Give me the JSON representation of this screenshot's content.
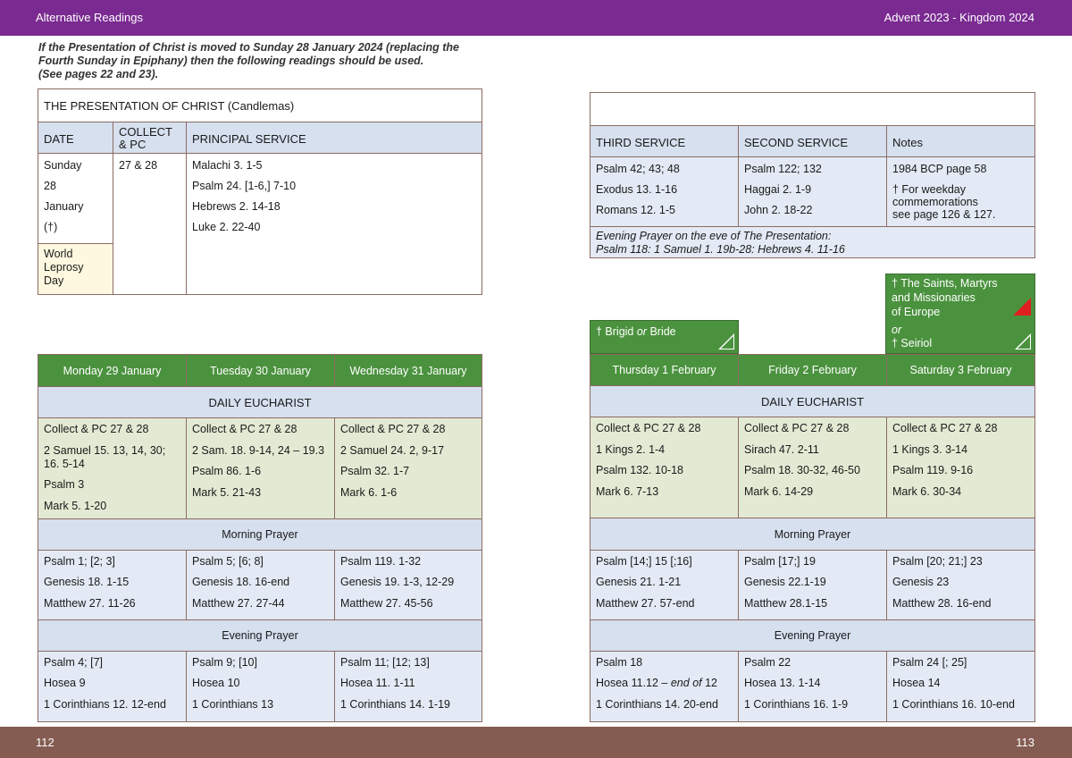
{
  "header": {
    "left": "Alternative Readings",
    "right": "Advent  2023 - Kingdom 2024"
  },
  "footer": {
    "left_page": "112",
    "right_page": "113"
  },
  "intro": {
    "line1": "If the Presentation of Christ is moved to Sunday 28 January 2024 (replacing the",
    "line2": "Fourth Sunday in Epiphany) then the following readings should be used.",
    "line3": "(See pages 22 and 23)."
  },
  "presentation": {
    "title": "THE PRESENTATION OF CHRIST (Candlemas)",
    "headers": {
      "date": "DATE",
      "collect1": "COLLECT",
      "collect2": "& PC",
      "principal": "PRINCIPAL SERVICE"
    },
    "date": [
      "Sunday",
      "28",
      "January",
      "(†)"
    ],
    "leprosy": [
      "World",
      "Leprosy",
      "Day"
    ],
    "collect": "27 & 28",
    "principal": [
      "Malachi 3. 1-5",
      "Psalm 24. [1-6,] 7-10",
      "Hebrews 2. 14-18",
      "Luke 2. 22-40"
    ]
  },
  "services": {
    "headers": {
      "third": "THIRD SERVICE",
      "second": "SECOND SERVICE",
      "notes": "Notes"
    },
    "third": [
      "Psalm 42; 43; 48",
      "Exodus 13. 1-16",
      "Romans 12. 1-5"
    ],
    "second": [
      "Psalm 122; 132",
      "Haggai 2. 1-9",
      "John 2. 18-22"
    ],
    "notes": [
      "1984 BCP page 58",
      "† For weekday",
      "commemorations",
      "see page 126 & 127."
    ],
    "eve_title": "Evening Prayer on the eve of The Presentation:",
    "eve_readings": "Psalm 118: 1 Samuel 1. 19b-28:  Hebrews 4. 11-16"
  },
  "commemorations": {
    "brigid": {
      "prefix": "† Brigid ",
      "or": "or",
      "suffix": " Bride"
    },
    "saints": {
      "line1": "† The Saints, Martyrs",
      "line2": "and Missionaries",
      "line3": "of Europe",
      "or": "or",
      "seiriol": "† Seiriol"
    }
  },
  "sections": {
    "eucharist": "DAILY EUCHARIST",
    "morning": "Morning Prayer",
    "evening": "Evening Prayer"
  },
  "left_week": {
    "days": [
      "Monday 29 January",
      "Tuesday 30 January",
      "Wednesday 31 January"
    ],
    "eucharist": [
      [
        "Collect & PC 27 & 28",
        "2 Samuel 15. 13, 14, 30;",
        "16. 5-14",
        "Psalm 3",
        "Mark 5. 1-20"
      ],
      [
        "Collect & PC 27 & 28",
        "2 Sam. 18. 9-14, 24 – 19.3",
        "Psalm 86. 1-6",
        "Mark 5. 21-43"
      ],
      [
        "Collect & PC 27 & 28",
        "2 Samuel 24. 2, 9-17",
        "Psalm 32. 1-7",
        "Mark 6. 1-6"
      ]
    ],
    "morning": [
      [
        "Psalm 1; [2; 3]",
        "Genesis 18. 1-15",
        "Matthew 27. 11-26"
      ],
      [
        "Psalm 5; [6; 8]",
        "Genesis 18. 16-end",
        "Matthew 27. 27-44"
      ],
      [
        "Psalm 119. 1-32",
        "Genesis 19. 1-3, 12-29",
        "Matthew 27. 45-56"
      ]
    ],
    "evening": [
      [
        "Psalm 4; [7]",
        "Hosea 9",
        "1 Corinthians 12. 12-end"
      ],
      [
        "Psalm 9; [10]",
        "Hosea 10",
        "1 Corinthians 13"
      ],
      [
        "Psalm 11; [12; 13]",
        "Hosea 11. 1-11",
        "1 Corinthians 14. 1-19"
      ]
    ]
  },
  "right_week": {
    "days": [
      "Thursday 1 February",
      "Friday 2 February",
      "Saturday 3 February"
    ],
    "eucharist": [
      [
        "Collect & PC 27 & 28",
        "1 Kings 2. 1-4",
        "Psalm 132. 10-18",
        "Mark 6. 7-13"
      ],
      [
        "Collect & PC 27 & 28",
        "Sirach 47. 2-11",
        "Psalm 18. 30-32, 46-50",
        "Mark 6. 14-29"
      ],
      [
        "Collect & PC 27 & 28",
        "1 Kings 3. 3-14",
        "Psalm 119. 9-16",
        "Mark 6. 30-34"
      ]
    ],
    "morning": [
      [
        "Psalm [14;] 15 [;16]",
        "Genesis 21. 1-21",
        "Matthew 27. 57-end"
      ],
      [
        "Psalm [17;] 19",
        "Genesis 22.1-19",
        "Matthew 28.1-15"
      ],
      [
        "Psalm [20; 21;] 23",
        "Genesis 23",
        "Matthew 28. 16-end"
      ]
    ],
    "evening": [
      [
        "Psalm 18",
        "Hosea 11.12 – ",
        "end of",
        " 12",
        "1 Corinthians 14. 20-end"
      ],
      [
        "Psalm 22",
        "Hosea 13. 1-14",
        "1 Corinthians 16. 1-9"
      ],
      [
        "Psalm 24 [; 25]",
        "Hosea 14",
        "1 Corinthians 16. 10-end"
      ]
    ]
  },
  "colors": {
    "header": "#7a2a91",
    "footer": "#855c52",
    "green": "#4b923e",
    "blue": "#d6e0ef",
    "sage": "#e3ead3",
    "cream": "#fdf8df",
    "border": "#8b6b63"
  }
}
